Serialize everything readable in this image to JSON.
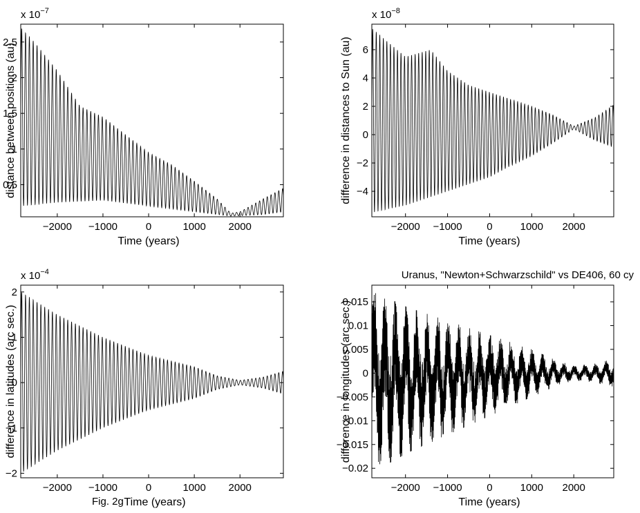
{
  "figure": {
    "caption": "Fig. 2g"
  },
  "chart_data": [
    {
      "type": "line",
      "title": "",
      "xlabel": "Time (years)",
      "ylabel": "distance between positions (au)",
      "exponent_label": {
        "base": "x 10",
        "power": "−7"
      },
      "xlim": [
        -2800,
        2950
      ],
      "ylim": [
        0.05,
        2.75
      ],
      "xticks": [
        -2000,
        -1000,
        0,
        1000,
        2000
      ],
      "xtick_labels": [
        "−2000",
        "−1000",
        "0",
        "1000",
        "2000"
      ],
      "yticks": [
        0.5,
        1,
        1.5,
        2,
        2.5
      ],
      "ytick_labels": [
        "0.5",
        "1",
        "1.5",
        "2",
        "2.5"
      ],
      "signal": {
        "kind": "oscillating_envelope",
        "period_years": 84,
        "upper_envelope": [
          [
            -2800,
            2.7
          ],
          [
            -2500,
            2.5
          ],
          [
            -2000,
            2.1
          ],
          [
            -1500,
            1.6
          ],
          [
            -1000,
            1.45
          ],
          [
            -500,
            1.2
          ],
          [
            0,
            0.95
          ],
          [
            500,
            0.78
          ],
          [
            1000,
            0.55
          ],
          [
            1500,
            0.3
          ],
          [
            1800,
            0.1
          ],
          [
            2000,
            0.12
          ],
          [
            2500,
            0.3
          ],
          [
            2950,
            0.45
          ]
        ],
        "lower_envelope": [
          [
            -2800,
            0.2
          ],
          [
            -2000,
            0.25
          ],
          [
            -1000,
            0.28
          ],
          [
            0,
            0.2
          ],
          [
            1000,
            0.12
          ],
          [
            1800,
            0.06
          ],
          [
            2500,
            0.08
          ],
          [
            2950,
            0.12
          ]
        ]
      }
    },
    {
      "type": "line",
      "title": "",
      "xlabel": "Time (years)",
      "ylabel": "difference in distances to Sun (au)",
      "exponent_label": {
        "base": "x 10",
        "power": "−8"
      },
      "xlim": [
        -2800,
        2950
      ],
      "ylim": [
        -5.8,
        7.8
      ],
      "xticks": [
        -2000,
        -1000,
        0,
        1000,
        2000
      ],
      "xtick_labels": [
        "−2000",
        "−1000",
        "0",
        "1000",
        "2000"
      ],
      "yticks": [
        -4,
        -2,
        0,
        2,
        4,
        6
      ],
      "ytick_labels": [
        "−4",
        "−2",
        "0",
        "2",
        "4",
        "6"
      ],
      "signal": {
        "kind": "oscillating_envelope",
        "period_years": 84,
        "upper_envelope": [
          [
            -2800,
            7.5
          ],
          [
            -2000,
            5.5
          ],
          [
            -1400,
            6.0
          ],
          [
            -1000,
            4.5
          ],
          [
            -500,
            3.5
          ],
          [
            0,
            3.0
          ],
          [
            500,
            2.5
          ],
          [
            1000,
            2.0
          ],
          [
            1500,
            1.4
          ],
          [
            2000,
            0.6
          ],
          [
            2500,
            1.2
          ],
          [
            2950,
            2.1
          ]
        ],
        "lower_envelope": [
          [
            -2800,
            -5.5
          ],
          [
            -2000,
            -5.0
          ],
          [
            -1000,
            -4.0
          ],
          [
            0,
            -3.0
          ],
          [
            500,
            -2.2
          ],
          [
            1000,
            -1.5
          ],
          [
            1500,
            -0.6
          ],
          [
            2000,
            0.4
          ],
          [
            2500,
            -0.4
          ],
          [
            2950,
            -0.9
          ]
        ]
      }
    },
    {
      "type": "line",
      "title": "",
      "xlabel": "Time (years)",
      "ylabel": "difference in latitudes (arc sec.)",
      "exponent_label": {
        "base": "x 10",
        "power": "−4"
      },
      "xlim": [
        -2800,
        2950
      ],
      "ylim": [
        -2.1,
        2.15
      ],
      "xticks": [
        -2000,
        -1000,
        0,
        1000,
        2000
      ],
      "xtick_labels": [
        "−2000",
        "−1000",
        "0",
        "1000",
        "2000"
      ],
      "yticks": [
        -2,
        -1,
        0,
        1,
        2
      ],
      "ytick_labels": [
        "−2",
        "−1",
        "0",
        "1",
        "2"
      ],
      "signal": {
        "kind": "oscillating_envelope",
        "period_years": 84,
        "upper_envelope": [
          [
            -2800,
            2.0
          ],
          [
            -2000,
            1.5
          ],
          [
            -1000,
            1.0
          ],
          [
            0,
            0.6
          ],
          [
            1000,
            0.35
          ],
          [
            1500,
            0.15
          ],
          [
            2000,
            0.05
          ],
          [
            2500,
            0.12
          ],
          [
            2950,
            0.25
          ]
        ],
        "lower_envelope": [
          [
            -2800,
            -2.0
          ],
          [
            -2000,
            -1.5
          ],
          [
            -1000,
            -1.0
          ],
          [
            0,
            -0.6
          ],
          [
            1000,
            -0.35
          ],
          [
            1500,
            -0.15
          ],
          [
            2000,
            -0.05
          ],
          [
            2500,
            -0.12
          ],
          [
            2950,
            -0.25
          ]
        ]
      }
    },
    {
      "type": "line",
      "title": "Uranus, \"Newton+Schwarzschild\" vs DE406, 60 cy",
      "xlabel": "Time (years)",
      "ylabel": "difference in longitudes (arc sec.)",
      "exponent_label": null,
      "xlim": [
        -2800,
        2950
      ],
      "ylim": [
        -0.022,
        0.0185
      ],
      "xticks": [
        -2000,
        -1000,
        0,
        1000,
        2000
      ],
      "xtick_labels": [
        "−2000",
        "−1000",
        "0",
        "1000",
        "2000"
      ],
      "yticks": [
        -0.02,
        -0.015,
        -0.01,
        -0.005,
        0,
        0.005,
        0.01,
        0.015
      ],
      "ytick_labels": [
        "−0.02",
        "−0.015",
        "−0.01",
        "−0.005",
        "0",
        "0.005",
        "0.01",
        "0.015"
      ],
      "signal": {
        "kind": "noisy_oscillation",
        "period_years": 250,
        "upper_envelope": [
          [
            -2800,
            0.0175
          ],
          [
            -2000,
            0.014
          ],
          [
            -1000,
            0.011
          ],
          [
            0,
            0.008
          ],
          [
            1000,
            0.005
          ],
          [
            1500,
            0.003
          ],
          [
            2000,
            0.0015
          ],
          [
            2500,
            0.002
          ],
          [
            2950,
            0.003
          ]
        ],
        "lower_envelope": [
          [
            -2800,
            -0.021
          ],
          [
            -2000,
            -0.017
          ],
          [
            -1000,
            -0.013
          ],
          [
            0,
            -0.009
          ],
          [
            1000,
            -0.005
          ],
          [
            1500,
            -0.003
          ],
          [
            2000,
            -0.0015
          ],
          [
            2500,
            -0.002
          ],
          [
            2950,
            -0.003
          ]
        ]
      }
    }
  ]
}
